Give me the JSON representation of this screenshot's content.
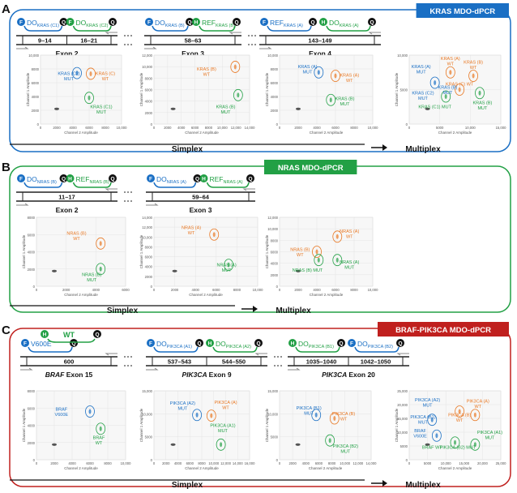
{
  "panelA": {
    "letter": "A",
    "badge": "KRAS MDO-dPCR",
    "color": "#1a6fc4",
    "diagrams": [
      {
        "exon": "Exon 2",
        "cells": [
          "9–14",
          "16–21"
        ],
        "probes": [
          {
            "L": "F",
            "t": "DO",
            "s": "KRAS (C1)",
            "c": "#1a6fc4",
            "end": "Q"
          },
          {
            "L": "F",
            "t": "DO",
            "s": "KRAS (C2)",
            "c": "#22a045",
            "end": "Q"
          }
        ]
      },
      {
        "exon": "Exon 3",
        "cells": [
          "58–63"
        ],
        "probes": [
          {
            "L": "F",
            "t": "DO",
            "s": "KRAS (B)",
            "c": "#1a6fc4",
            "end": "Q"
          },
          {
            "L": "H",
            "t": "REF",
            "s": "KRAS (B)",
            "c": "#22a045",
            "end": "Q"
          }
        ]
      },
      {
        "exon": "Exon 4",
        "cells": [
          "143–149"
        ],
        "probes": [
          {
            "L": "F",
            "t": "REF",
            "s": "KRAS (A)",
            "c": "#1a6fc4",
            "end": "Q"
          },
          {
            "L": "H",
            "t": "DO",
            "s": "KRAS (A)",
            "c": "#22a045",
            "end": "Q"
          }
        ]
      }
    ],
    "plots": [
      {
        "ymax": "10,000",
        "yticks": [
          "10,000",
          "8000",
          "6000",
          "4000",
          "2000",
          "0"
        ],
        "xticks": [
          "0",
          "2000",
          "4000",
          "6000",
          "8000",
          "10,000"
        ],
        "labels": [
          {
            "t": "KRAS (C2)\nMUT",
            "c": "#1a6fc4"
          },
          {
            "t": "KRAS (C)\nWT",
            "c": "#e87722"
          },
          {
            "t": "KRAS (C1)\nMUT",
            "c": "#22a045"
          }
        ]
      },
      {
        "yticks": [
          "12,000",
          "10,000",
          "8000",
          "6000",
          "4000",
          "2000",
          "0"
        ],
        "xticks": [
          "0",
          "2000",
          "4000",
          "6000",
          "8000",
          "10,000",
          "12,000",
          "14,000"
        ],
        "labels": [
          {
            "t": "KRAS (B)\nWT",
            "c": "#e87722"
          },
          {
            "t": "KRAS (B)\nMUT",
            "c": "#22a045"
          }
        ]
      },
      {
        "yticks": [
          "10,000",
          "8000",
          "6000",
          "4000",
          "2000",
          "0"
        ],
        "xticks": [
          "0",
          "2000",
          "4000",
          "6000",
          "8000",
          "10,000"
        ],
        "labels": [
          {
            "t": "KRAS (A)\nMUT",
            "c": "#1a6fc4"
          },
          {
            "t": "KRAS (A)\nWT",
            "c": "#e87722"
          },
          {
            "t": "KRAS (B)\nMUT",
            "c": "#22a045"
          }
        ]
      },
      {
        "yticks": [
          "10,000",
          "5000",
          "0"
        ],
        "xticks": [
          "0",
          "5000",
          "10,000",
          "15,000"
        ],
        "labels": [
          {
            "t": "KRAS (A)\nMUT",
            "c": "#1a6fc4"
          },
          {
            "t": "KRAS (B)\nMUT",
            "c": "#1a6fc4"
          },
          {
            "t": "KRAS (C2)\nMUT",
            "c": "#1a6fc4"
          },
          {
            "t": "KRAS (A)\nWT",
            "c": "#e87722"
          },
          {
            "t": "KRAS (B)\nWT",
            "c": "#e87722"
          },
          {
            "t": "KRAS (C) WT",
            "c": "#e87722"
          },
          {
            "t": "KRAS (C1) MUT",
            "c": "#22a045"
          },
          {
            "t": "KRAS (B)\nMUT",
            "c": "#22a045"
          }
        ]
      }
    ],
    "simplex": "Simplex",
    "multiplex": "Multiplex"
  },
  "panelB": {
    "letter": "B",
    "badge": "NRAS MDO-dPCR",
    "color": "#22a045",
    "diagrams": [
      {
        "exon": "Exon 2",
        "cells": [
          "11–17"
        ],
        "probes": [
          {
            "L": "F",
            "t": "DO",
            "s": "NRAS (B)",
            "c": "#1a6fc4",
            "end": "Q"
          },
          {
            "L": "H",
            "t": "REF",
            "s": "NRAS (B)",
            "c": "#22a045",
            "end": "Q"
          }
        ]
      },
      {
        "exon": "Exon 3",
        "cells": [
          "59–64"
        ],
        "probes": [
          {
            "L": "F",
            "t": "DO",
            "s": "NRAS (A)",
            "c": "#1a6fc4",
            "end": "Q"
          },
          {
            "L": "H",
            "t": "REF",
            "s": "NRAS (A)",
            "c": "#22a045",
            "end": "Q"
          }
        ]
      }
    ],
    "plots": [
      {
        "yticks": [
          "8000",
          "6000",
          "4000",
          "2000",
          "0"
        ],
        "xticks": [
          "0",
          "2000",
          "4000",
          "6000"
        ],
        "labels": [
          {
            "t": "NRAS (B)\nWT",
            "c": "#e87722"
          },
          {
            "t": "NRAS (B)\nMUT",
            "c": "#22a045"
          }
        ]
      },
      {
        "yticks": [
          "14,000",
          "12,000",
          "10,000",
          "8000",
          "6000",
          "4000",
          "2000",
          "0"
        ],
        "xticks": [
          "0",
          "2000",
          "4000",
          "6000",
          "8000",
          "10,000"
        ],
        "labels": [
          {
            "t": "NRAS (A)\nWT",
            "c": "#e87722"
          },
          {
            "t": "NRAS (A)\nMUT",
            "c": "#22a045"
          }
        ]
      },
      {
        "yticks": [
          "12,000",
          "10,000",
          "8000",
          "6000",
          "4000",
          "2000",
          "0"
        ],
        "xticks": [
          "0",
          "2000",
          "4000",
          "6000",
          "8000",
          "10,000"
        ],
        "labels": [
          {
            "t": "NRAS (A)\nWT",
            "c": "#e87722"
          },
          {
            "t": "NRAS (B)\nWT",
            "c": "#e87722"
          },
          {
            "t": "NRAS (A)\nMUT",
            "c": "#22a045"
          },
          {
            "t": "NRAS (B) MUT",
            "c": "#22a045"
          }
        ]
      }
    ],
    "simplex": "Simplex",
    "multiplex": "Multiplex"
  },
  "panelC": {
    "letter": "C",
    "badge": "BRAF-PIK3CA MDO-dPCR",
    "color": "#c0201e",
    "diagrams": [
      {
        "exon": "BRAF Exon 15",
        "cells": [
          "600"
        ],
        "probes": [
          {
            "L": "F",
            "t": "V600E",
            "s": "",
            "c": "#1a6fc4",
            "end": "Q"
          }
        ],
        "wt": "WT"
      },
      {
        "exon": "PIK3CA Exon 9",
        "cells": [
          "537–543",
          "544–550"
        ],
        "probes": [
          {
            "L": "F",
            "t": "DO",
            "s": "PIK3CA (A1)",
            "c": "#1a6fc4",
            "end": "Q"
          },
          {
            "L": "H",
            "t": "DO",
            "s": "PIK3CA (A2)",
            "c": "#22a045",
            "end": "Q"
          }
        ]
      },
      {
        "exon": "PIK3CA Exon 20",
        "cells": [
          "1035–1040",
          "1042–1050"
        ],
        "probes": [
          {
            "L": "H",
            "t": "DO",
            "s": "PIK3CA (B1)",
            "c": "#22a045",
            "end": "Q"
          },
          {
            "L": "F",
            "t": "DO",
            "s": "PIK3CA (B2)",
            "c": "#1a6fc4",
            "end": "Q"
          }
        ]
      }
    ],
    "plots": [
      {
        "yticks": [
          "8000",
          "6000",
          "4000",
          "2000",
          "0"
        ],
        "xticks": [
          "0",
          "2000",
          "4000",
          "6000",
          "8000",
          "10,000"
        ],
        "labels": [
          {
            "t": "BRAF\nV600E",
            "c": "#1a6fc4"
          },
          {
            "t": "BRAF\nWT",
            "c": "#22a045"
          }
        ]
      },
      {
        "yticks": [
          "15,000",
          "10,000",
          "5000",
          "0"
        ],
        "xticks": [
          "0",
          "2000",
          "4000",
          "6000",
          "8000",
          "10,000",
          "12,000",
          "14,000",
          "16,000"
        ],
        "labels": [
          {
            "t": "PIK3CA (A2)\nMUT",
            "c": "#1a6fc4"
          },
          {
            "t": "PIK3CA (A)\nWT",
            "c": "#e87722"
          },
          {
            "t": "PIK3CA (A1)\nMUT",
            "c": "#22a045"
          }
        ]
      },
      {
        "yticks": [
          "15,000",
          "10,000",
          "5000",
          "0"
        ],
        "xticks": [
          "0",
          "2000",
          "4000",
          "6000",
          "8000",
          "10,000",
          "12,000",
          "14,000"
        ],
        "labels": [
          {
            "t": "PIK3CA (B1)\nMUT",
            "c": "#1a6fc4"
          },
          {
            "t": "PIK3CA (B)\nWT",
            "c": "#e87722"
          },
          {
            "t": "PIK3CA (B2)\nMUT",
            "c": "#22a045"
          }
        ]
      },
      {
        "yticks": [
          "25,000",
          "20,000",
          "15,000",
          "10,000",
          "5000",
          "0"
        ],
        "xticks": [
          "0",
          "5000",
          "10,000",
          "15,000",
          "20,000",
          "25,000"
        ],
        "labels": [
          {
            "t": "PIK3CA (A2)\nMUT",
            "c": "#1a6fc4"
          },
          {
            "t": "PIK3CA (B1)\nMUT",
            "c": "#1a6fc4"
          },
          {
            "t": "BRAF\nV600E",
            "c": "#1a6fc4"
          },
          {
            "t": "PIK3CA (A)\nWT",
            "c": "#e87722"
          },
          {
            "t": "PIK3CA (B)\nWT",
            "c": "#e87722"
          },
          {
            "t": "BRAF WT",
            "c": "#22a045"
          },
          {
            "t": "PIK3CA (B2) MUT",
            "c": "#22a045"
          },
          {
            "t": "PIK3CA (A1)\nMUT",
            "c": "#22a045"
          }
        ]
      }
    ],
    "simplex": "Simplex",
    "multiplex": "Multiplex"
  },
  "axis": {
    "x": "Channel 2 Amplitude",
    "y": "Channel 1 Amplitude"
  }
}
